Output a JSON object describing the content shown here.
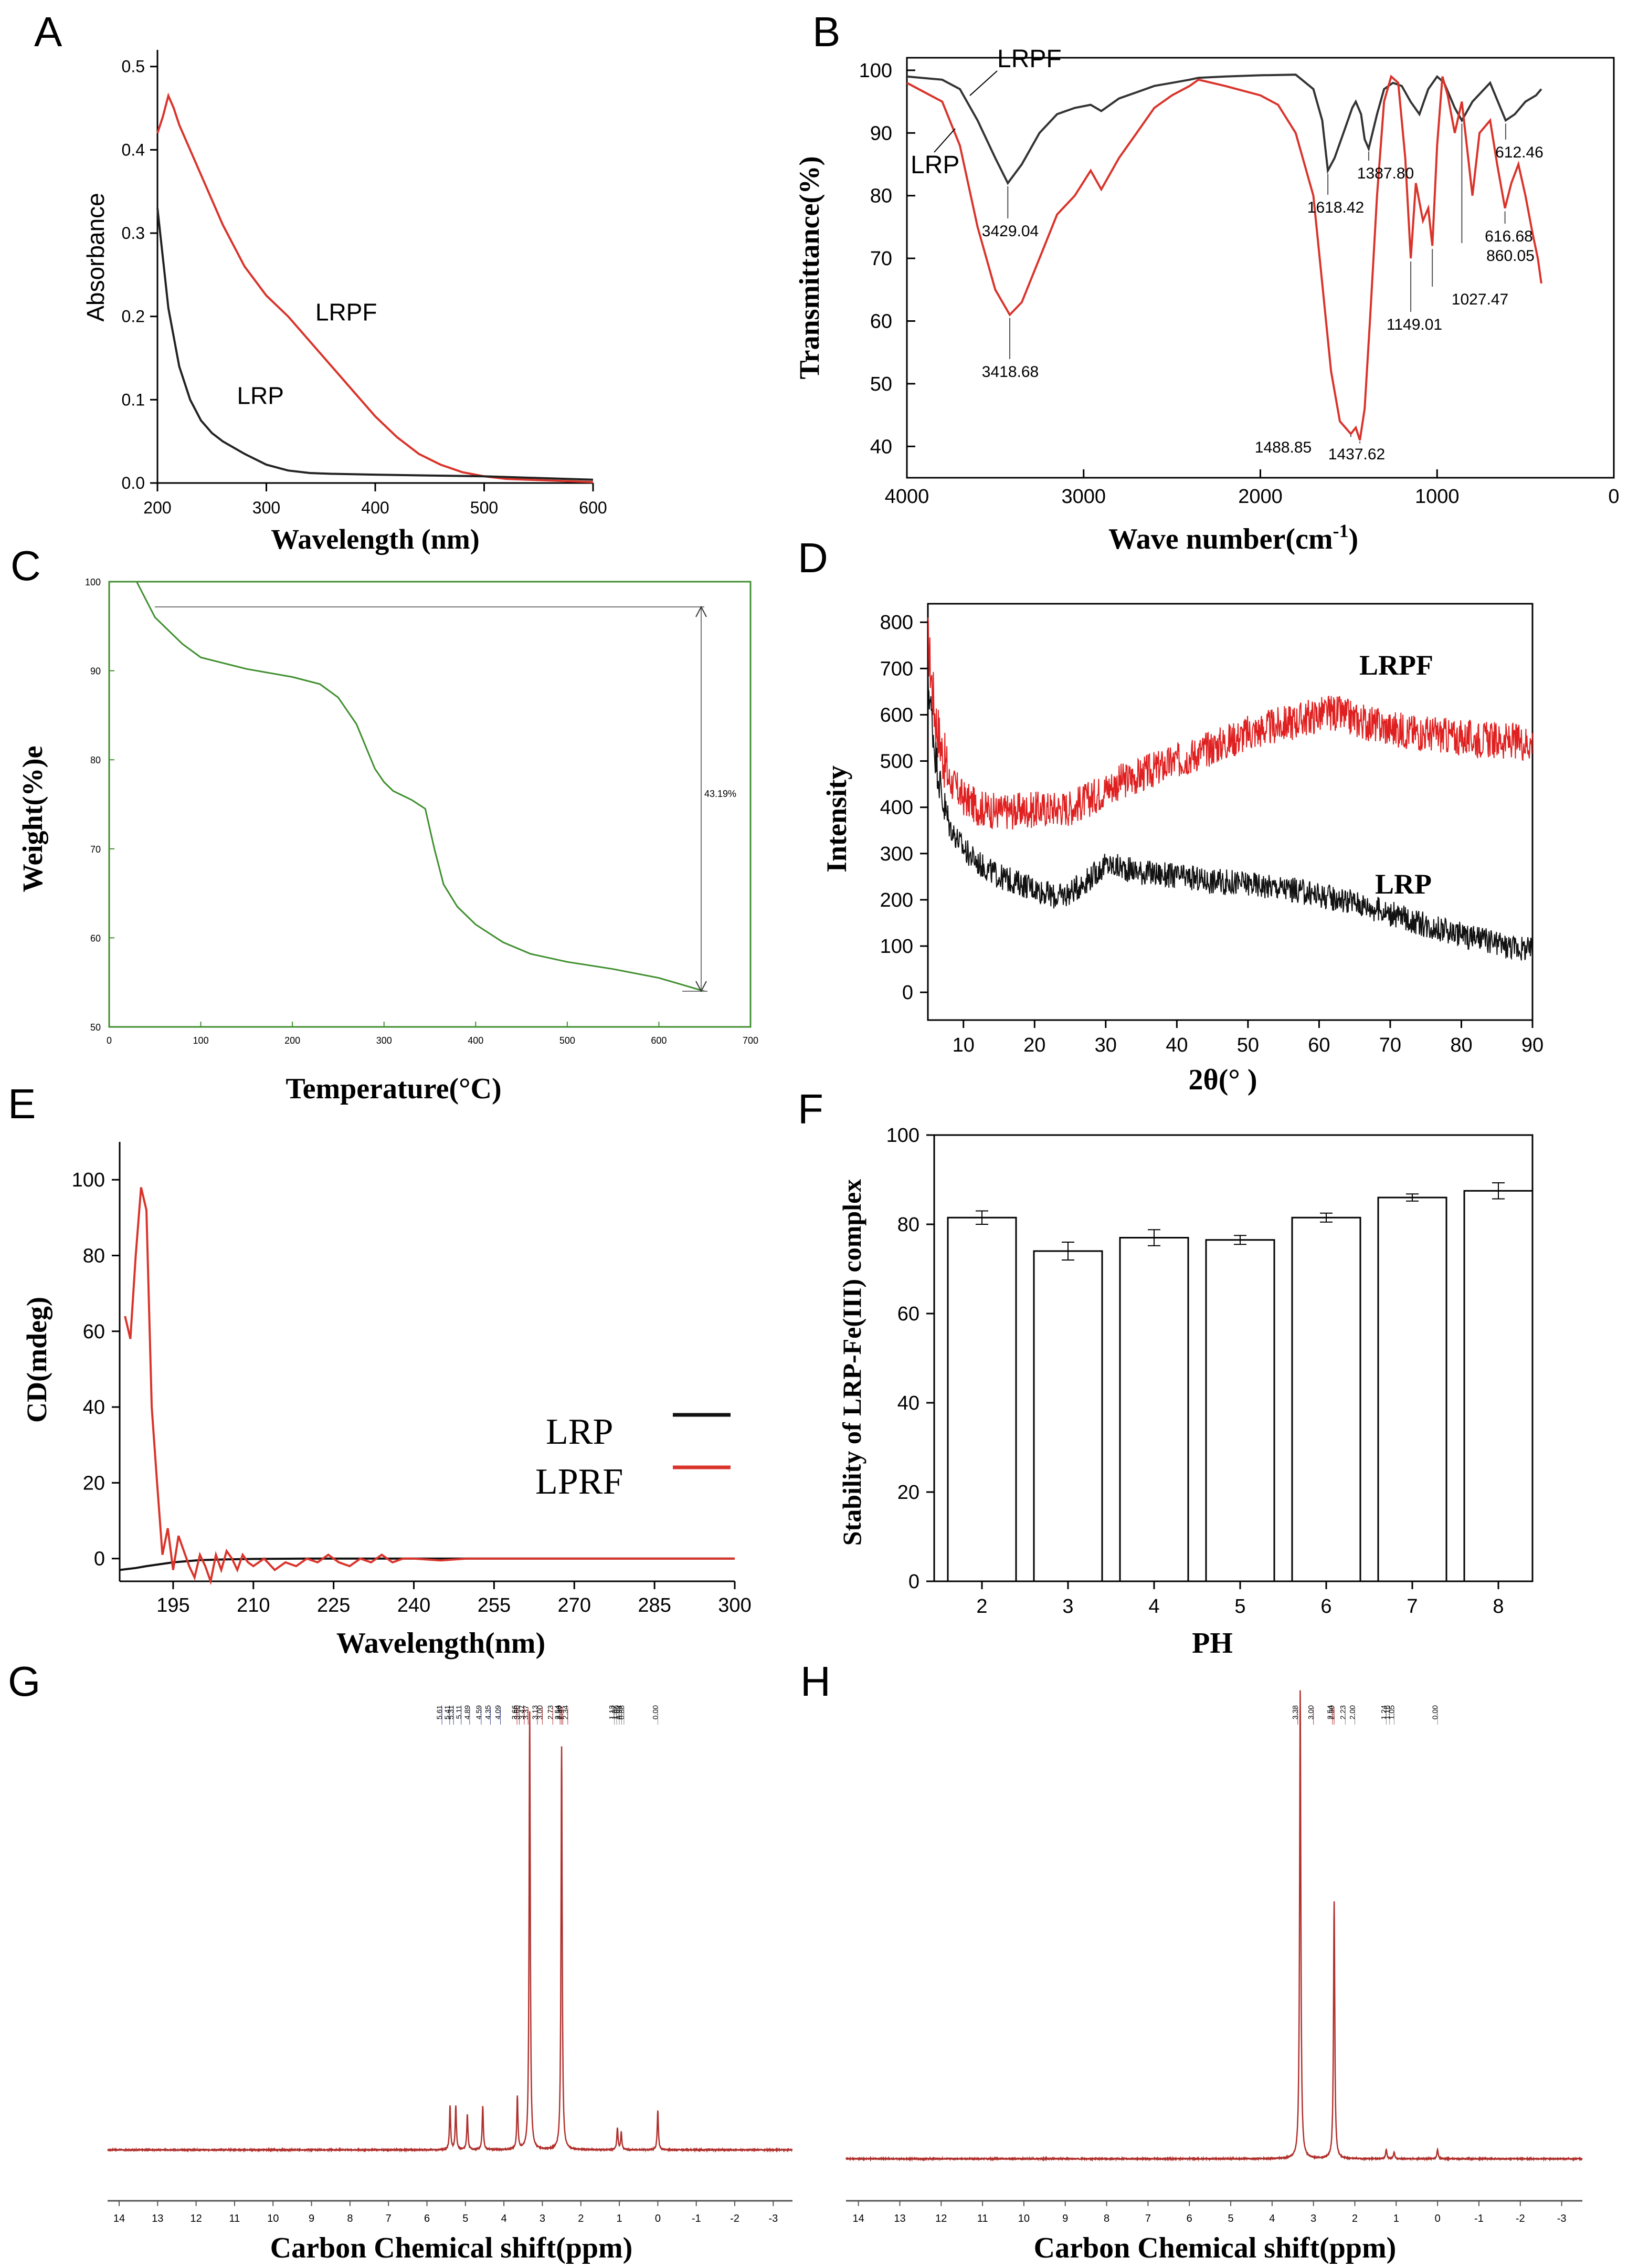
{
  "figure": {
    "panels": [
      "A",
      "B",
      "C",
      "D",
      "E",
      "F",
      "G",
      "H"
    ]
  },
  "chart_data": [
    {
      "id": "A",
      "type": "line",
      "xlabel": "Wavelength (nm)",
      "ylabel": "Absorbance",
      "xlim": [
        200,
        600
      ],
      "ylim": [
        0,
        0.52
      ],
      "xticks": [
        200,
        300,
        400,
        500,
        600
      ],
      "yticks": [
        0.0,
        0.1,
        0.2,
        0.3,
        0.4,
        0.5
      ],
      "ytick_labels": [
        "0.0",
        "0.1",
        "0.2",
        "0.3",
        "0.4",
        "0.5"
      ],
      "series": [
        {
          "name": "LRPF",
          "color": "#d9342b",
          "x": [
            200,
            205,
            210,
            215,
            220,
            240,
            260,
            280,
            300,
            320,
            340,
            360,
            380,
            400,
            420,
            440,
            460,
            480,
            500,
            520,
            540,
            560,
            580,
            600
          ],
          "y": [
            0.42,
            0.44,
            0.465,
            0.45,
            0.43,
            0.37,
            0.31,
            0.26,
            0.225,
            0.2,
            0.17,
            0.14,
            0.11,
            0.08,
            0.055,
            0.035,
            0.022,
            0.013,
            0.008,
            0.005,
            0.004,
            0.003,
            0.002,
            0.001
          ]
        },
        {
          "name": "LRP",
          "color": "#222222",
          "x": [
            200,
            205,
            210,
            220,
            230,
            240,
            250,
            260,
            280,
            300,
            320,
            340,
            360,
            400,
            450,
            500,
            550,
            600
          ],
          "y": [
            0.33,
            0.27,
            0.21,
            0.14,
            0.1,
            0.075,
            0.06,
            0.05,
            0.035,
            0.022,
            0.015,
            0.012,
            0.011,
            0.01,
            0.009,
            0.008,
            0.006,
            0.004
          ]
        }
      ],
      "annotations": [
        {
          "text": "LRPF",
          "x": 345,
          "y": 0.195
        },
        {
          "text": "LRP",
          "x": 273,
          "y": 0.095
        }
      ]
    },
    {
      "id": "B",
      "type": "line",
      "xlabel": "Wave number(cm-1)",
      "xlabel_main": "Wave number(cm",
      "xlabel_sup": "-1",
      "xlabel_end": ")",
      "ylabel": "Transmittance(%)",
      "xlim": [
        4000,
        0
      ],
      "ylim": [
        35,
        102
      ],
      "xticks": [
        4000,
        3000,
        2000,
        1000,
        0
      ],
      "yticks": [
        40,
        50,
        60,
        70,
        80,
        90,
        100
      ],
      "series": [
        {
          "name": "LRPF",
          "color": "#333333",
          "x": [
            4000,
            3800,
            3700,
            3600,
            3500,
            3429,
            3350,
            3250,
            3150,
            3050,
            2960,
            2900,
            2800,
            2700,
            2600,
            2500,
            2400,
            2350,
            2200,
            2000,
            1800,
            1700,
            1650,
            1618,
            1580,
            1530,
            1480,
            1460,
            1430,
            1410,
            1387,
            1340,
            1300,
            1250,
            1200,
            1150,
            1100,
            1050,
            1000,
            960,
            930,
            900,
            860,
            800,
            700,
            612,
            560,
            500,
            440,
            410
          ],
          "y": [
            99,
            98.5,
            97,
            92,
            86,
            82,
            85,
            90,
            93,
            94,
            94.5,
            93.5,
            95.5,
            96.5,
            97.5,
            98,
            98.5,
            98.8,
            99,
            99.2,
            99.3,
            97,
            92,
            84,
            86,
            90,
            94,
            95,
            93,
            89,
            87.5,
            93,
            97,
            98,
            97.5,
            95,
            93,
            97,
            99,
            98,
            96,
            94,
            92,
            95,
            98,
            92,
            93,
            95,
            96,
            97
          ]
        },
        {
          "name": "LRP",
          "color": "#d9342b",
          "x": [
            4000,
            3800,
            3700,
            3600,
            3500,
            3418,
            3350,
            3250,
            3150,
            3050,
            2960,
            2900,
            2800,
            2700,
            2600,
            2500,
            2400,
            2350,
            2200,
            2000,
            1900,
            1800,
            1700,
            1650,
            1600,
            1550,
            1488,
            1460,
            1437,
            1410,
            1380,
            1340,
            1300,
            1260,
            1220,
            1180,
            1149,
            1120,
            1080,
            1050,
            1027,
            1000,
            970,
            940,
            900,
            860,
            800,
            760,
            700,
            660,
            616,
            580,
            540,
            500,
            460,
            430,
            410
          ],
          "y": [
            98,
            95,
            88,
            75,
            65,
            61,
            63,
            70,
            77,
            80,
            84,
            81,
            86,
            90,
            94,
            96,
            97.5,
            98.5,
            97.5,
            96,
            94.5,
            90,
            80,
            66,
            52,
            44,
            42,
            43,
            41,
            46,
            60,
            80,
            95,
            99,
            98,
            86,
            70,
            82,
            76,
            78,
            72,
            88,
            99,
            96,
            90,
            95,
            80,
            90,
            92,
            85,
            78,
            82,
            85,
            80,
            74,
            70,
            66
          ]
        }
      ],
      "curve_labels": [
        {
          "text": "LRPF"
        },
        {
          "text": "LRP"
        }
      ],
      "peak_labels": [
        "3429.04",
        "3418.68",
        "1618.42",
        "1387.80",
        "1488.85",
        "1437.62",
        "1149.01",
        "1027.47",
        "860.05",
        "616.68",
        "612.46"
      ]
    },
    {
      "id": "C",
      "type": "line",
      "xlabel": "Temperature(°C)",
      "ylabel": "Weight(%)e",
      "xlim": [
        0,
        700
      ],
      "ylim": [
        50,
        100
      ],
      "xticks": [
        0,
        100,
        200,
        300,
        400,
        500,
        600,
        700
      ],
      "yticks": [
        50,
        60,
        70,
        80,
        90,
        100
      ],
      "series": [
        {
          "name": "weight",
          "color": "#3f8f2e",
          "x": [
            30,
            50,
            80,
            100,
            150,
            200,
            230,
            250,
            270,
            290,
            300,
            310,
            330,
            345,
            355,
            365,
            380,
            400,
            430,
            460,
            500,
            550,
            600,
            650
          ],
          "y": [
            100,
            96,
            93,
            91.5,
            90.2,
            89.3,
            88.5,
            87,
            84,
            79,
            77.5,
            76.5,
            75.5,
            74.5,
            70,
            66,
            63.5,
            61.5,
            59.5,
            58.2,
            57.3,
            56.5,
            55.5,
            54
          ]
        }
      ],
      "annotation": "43.19%"
    },
    {
      "id": "D",
      "type": "line",
      "xlabel_main": "2θ(",
      "xlabel_end": "°  )",
      "ylabel": "Intensity",
      "xlim": [
        5,
        90
      ],
      "ylim": [
        -60,
        840
      ],
      "xticks": [
        10,
        20,
        30,
        40,
        50,
        60,
        70,
        80,
        90
      ],
      "yticks": [
        0,
        100,
        200,
        300,
        400,
        500,
        600,
        700,
        800
      ],
      "series": [
        {
          "name": "LRPF",
          "color": "#e02020",
          "x": [
            5,
            6,
            7,
            8,
            10,
            12,
            15,
            20,
            25,
            28,
            30,
            32,
            35,
            40,
            45,
            50,
            55,
            60,
            62,
            65,
            70,
            75,
            80,
            85,
            90
          ],
          "y": [
            760,
            600,
            520,
            460,
            420,
            400,
            390,
            395,
            400,
            420,
            440,
            455,
            470,
            500,
            530,
            560,
            580,
            600,
            605,
            590,
            570,
            560,
            550,
            545,
            540
          ]
        },
        {
          "name": "LRP",
          "color": "#111111",
          "x": [
            5,
            6,
            7,
            8,
            10,
            12,
            15,
            20,
            23,
            25,
            28,
            30,
            32,
            35,
            40,
            45,
            50,
            55,
            60,
            65,
            70,
            75,
            80,
            85,
            90
          ],
          "y": [
            680,
            520,
            420,
            360,
            310,
            280,
            250,
            225,
            205,
            215,
            250,
            275,
            270,
            260,
            250,
            240,
            235,
            225,
            210,
            195,
            170,
            145,
            125,
            105,
            90
          ]
        }
      ],
      "annotations": [
        {
          "text": "LRPF"
        },
        {
          "text": "LRP"
        }
      ]
    },
    {
      "id": "E",
      "type": "line",
      "xlabel": "Wavelength(nm)",
      "ylabel": "CD(mdeg)",
      "xlim": [
        185,
        300
      ],
      "ylim": [
        -6,
        110
      ],
      "xticks": [
        195,
        210,
        225,
        240,
        255,
        270,
        285,
        300
      ],
      "yticks": [
        0,
        20,
        40,
        60,
        80,
        100
      ],
      "series": [
        {
          "name": "LRP",
          "color": "#111111",
          "x": [
            185,
            188,
            190,
            195,
            200,
            205,
            210,
            220,
            240,
            260,
            280,
            300
          ],
          "y": [
            -3,
            -2.5,
            -2,
            -1,
            -0.4,
            -0.2,
            -0.1,
            0,
            0,
            0,
            0,
            0
          ]
        },
        {
          "name": "LPRF",
          "color": "#d9342b",
          "x": [
            186,
            187,
            188,
            189,
            190,
            191,
            192,
            193,
            194,
            195,
            196,
            197,
            198,
            199,
            200,
            201,
            202,
            203,
            204,
            205,
            206,
            207,
            208,
            209,
            210,
            212,
            214,
            216,
            218,
            220,
            222,
            224,
            226,
            228,
            230,
            232,
            234,
            236,
            238,
            240,
            245,
            250,
            260,
            270,
            280,
            290,
            300
          ],
          "y": [
            64,
            58,
            80,
            98,
            92,
            40,
            20,
            1,
            8,
            -3,
            6,
            2,
            -2,
            -5,
            1,
            -2,
            -6,
            1,
            -3,
            2,
            0,
            -3,
            1,
            -1,
            -2,
            0,
            -3,
            -1,
            -2,
            0,
            -1,
            1,
            -1,
            -2,
            0,
            -1,
            1,
            -1,
            0,
            0,
            -0.5,
            0,
            0,
            0,
            0,
            0,
            0
          ]
        }
      ],
      "legend": [
        {
          "name": "LRP",
          "color": "#111111"
        },
        {
          "name": "LPRF",
          "color": "#d9342b"
        }
      ]
    },
    {
      "id": "F",
      "type": "bar",
      "xlabel": "PH",
      "ylabel": "Stability of LRP-Fe(III) complex",
      "categories": [
        "2",
        "3",
        "4",
        "5",
        "6",
        "7",
        "8"
      ],
      "values": [
        81.5,
        74,
        77,
        76.5,
        81.5,
        86,
        87.5
      ],
      "errors": [
        1.5,
        2,
        1.8,
        1.0,
        1.0,
        0.8,
        1.8
      ],
      "ylim": [
        0,
        100
      ],
      "yticks": [
        0,
        20,
        40,
        60,
        80,
        100
      ]
    },
    {
      "id": "G",
      "type": "line",
      "xlabel": "Carbon Chemical shift(ppm)",
      "xticks": [
        14,
        13,
        12,
        11,
        10,
        9,
        8,
        7,
        6,
        5,
        4,
        3,
        2,
        1,
        0,
        -1,
        -2,
        -3
      ],
      "xtick_labels": [
        "14",
        "13",
        "12",
        "11",
        "10",
        "9",
        "8",
        "7",
        "6",
        "5",
        "4",
        "3",
        "2",
        "1",
        "0",
        "-1",
        "-2",
        "-3"
      ],
      "xlim": [
        14.3,
        -3.5
      ],
      "peaks": [
        {
          "ppm": 5.4,
          "h": 0.1
        },
        {
          "ppm": 5.25,
          "h": 0.1
        },
        {
          "ppm": 4.95,
          "h": 0.08
        },
        {
          "ppm": 4.55,
          "h": 0.1
        },
        {
          "ppm": 3.65,
          "h": 0.12
        },
        {
          "ppm": 3.33,
          "h": 1.0
        },
        {
          "ppm": 2.5,
          "h": 0.92
        },
        {
          "ppm": 1.05,
          "h": 0.05
        },
        {
          "ppm": 0.95,
          "h": 0.04
        },
        {
          "ppm": 0.0,
          "h": 0.09
        }
      ],
      "peak_picks": [
        "5.61",
        "5.41",
        "5.31",
        "5.11",
        "4.89",
        "4.59",
        "4.35",
        "4.09",
        "3.66",
        "3.60",
        "3.47",
        "3.37",
        "3.13",
        "3.00",
        "2.73",
        "2.54",
        "2.50",
        "2.47",
        "2.34",
        "1.13",
        "1.07",
        "1.00",
        "0.94",
        "0.88",
        "0.00"
      ]
    },
    {
      "id": "H",
      "type": "line",
      "xlabel": "Carbon Chemical shift(ppm)",
      "xticks": [
        14,
        13,
        12,
        11,
        10,
        9,
        8,
        7,
        6,
        5,
        4,
        3,
        2,
        1,
        0,
        -1,
        -2,
        -3
      ],
      "xtick_labels": [
        "14",
        "13",
        "12",
        "11",
        "10",
        "9",
        "8",
        "7",
        "6",
        "5",
        "4",
        "3",
        "2",
        "1",
        "0",
        "-1",
        "-2",
        "-3"
      ],
      "xlim": [
        14.3,
        -3.5
      ],
      "peaks": [
        {
          "ppm": 3.32,
          "h": 1.0
        },
        {
          "ppm": 2.5,
          "h": 0.55
        },
        {
          "ppm": 1.24,
          "h": 0.02
        },
        {
          "ppm": 1.05,
          "h": 0.015
        },
        {
          "ppm": 0.0,
          "h": 0.02
        }
      ],
      "peak_picks": [
        "3.38",
        "3.00",
        "2.54",
        "2.50",
        "2.23",
        "2.00",
        "1.24",
        "1.16",
        "1.05",
        "0.00"
      ]
    }
  ]
}
